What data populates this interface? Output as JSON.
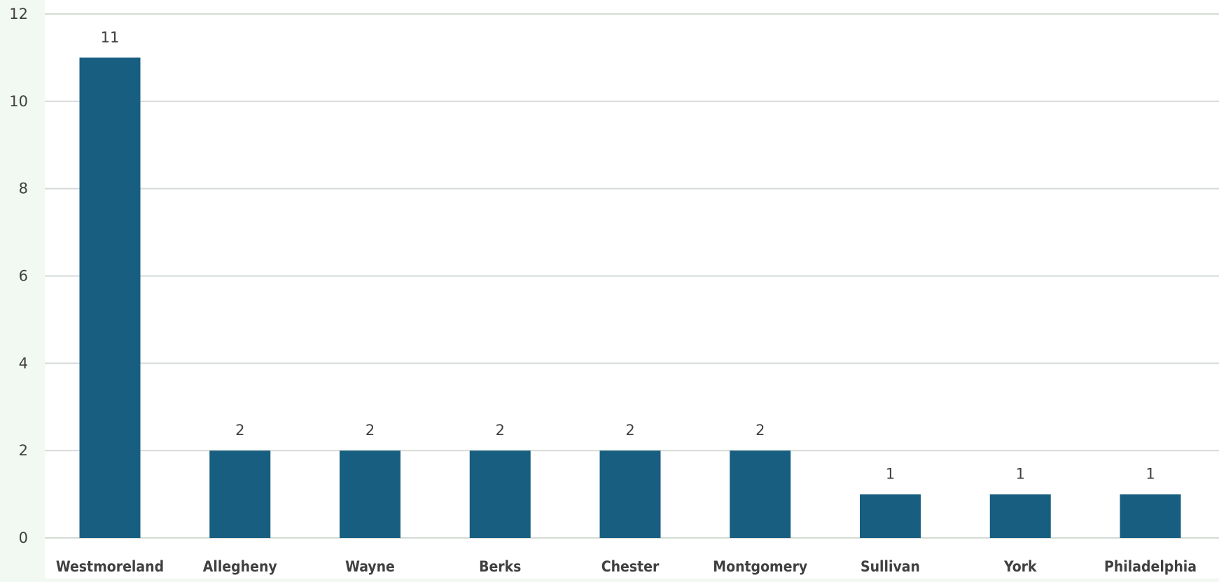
{
  "chart_data": {
    "type": "bar",
    "categories": [
      "Westmoreland",
      "Allegheny",
      "Wayne",
      "Berks",
      "Chester",
      "Montgomery",
      "Sullivan",
      "York",
      "Philadelphia"
    ],
    "values": [
      11,
      2,
      2,
      2,
      2,
      2,
      1,
      1,
      1
    ],
    "data_labels": [
      "11",
      "2",
      "2",
      "2",
      "2",
      "2",
      "1",
      "1",
      "1"
    ],
    "yticks": [
      0,
      2,
      4,
      6,
      8,
      10,
      12
    ],
    "ylim": [
      0,
      12
    ],
    "grid": true,
    "legend": "none",
    "title": "",
    "xlabel": "",
    "ylabel": "",
    "colors": {
      "bar": "#175e81",
      "gridline": "#d4dbd4",
      "plot_background": "#ffffff",
      "page_background": "#f2f9f2",
      "text": "#404040"
    }
  }
}
